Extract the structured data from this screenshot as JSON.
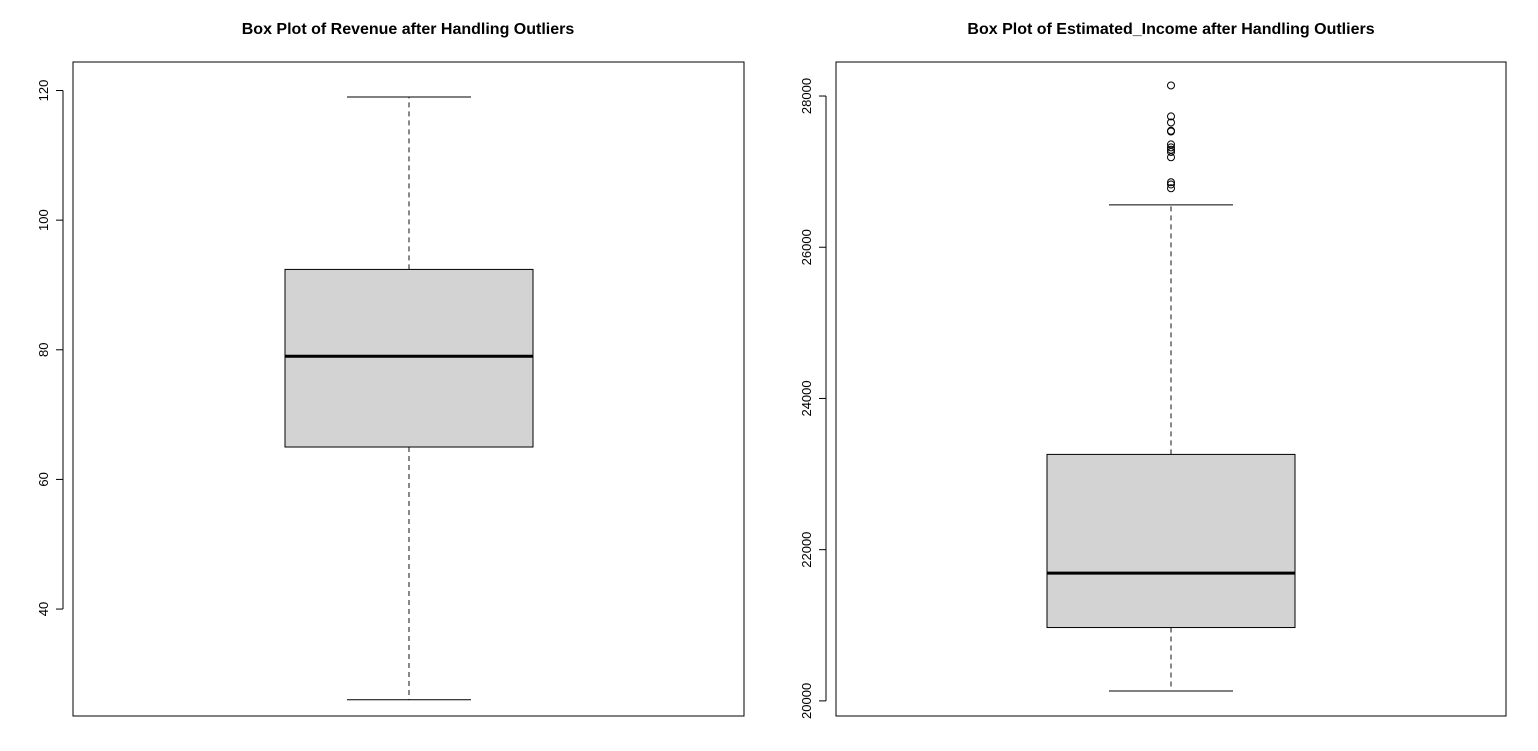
{
  "chart_data": [
    {
      "type": "box",
      "title": "Box Plot of Revenue after Handling Outliers",
      "xlabel": "",
      "ylabel": "",
      "ylim": [
        23.5,
        124.4
      ],
      "yticks": [
        40,
        60,
        80,
        100,
        120
      ],
      "box": {
        "min": 26,
        "q1": 65,
        "median": 79,
        "q3": 92.4,
        "max": 119
      },
      "outliers": [],
      "colors": {
        "box_fill": "#d3d3d3",
        "stroke": "#000000",
        "whisker": "#555555"
      },
      "grid": false
    },
    {
      "type": "box",
      "title": "Box Plot of Estimated_Income after Handling Outliers",
      "xlabel": "",
      "ylabel": "",
      "ylim": [
        19800,
        28450
      ],
      "yticks": [
        20000,
        22000,
        24000,
        26000,
        28000
      ],
      "box": {
        "min": 20130,
        "q1": 20970,
        "median": 21690,
        "q3": 23260,
        "max": 26560
      },
      "outliers": [
        28140,
        27730,
        27650,
        27540,
        27530,
        27360,
        27320,
        27290,
        27260,
        27190,
        26860,
        26830,
        26780
      ],
      "colors": {
        "box_fill": "#d3d3d3",
        "stroke": "#000000",
        "whisker": "#555555"
      },
      "grid": false
    }
  ]
}
